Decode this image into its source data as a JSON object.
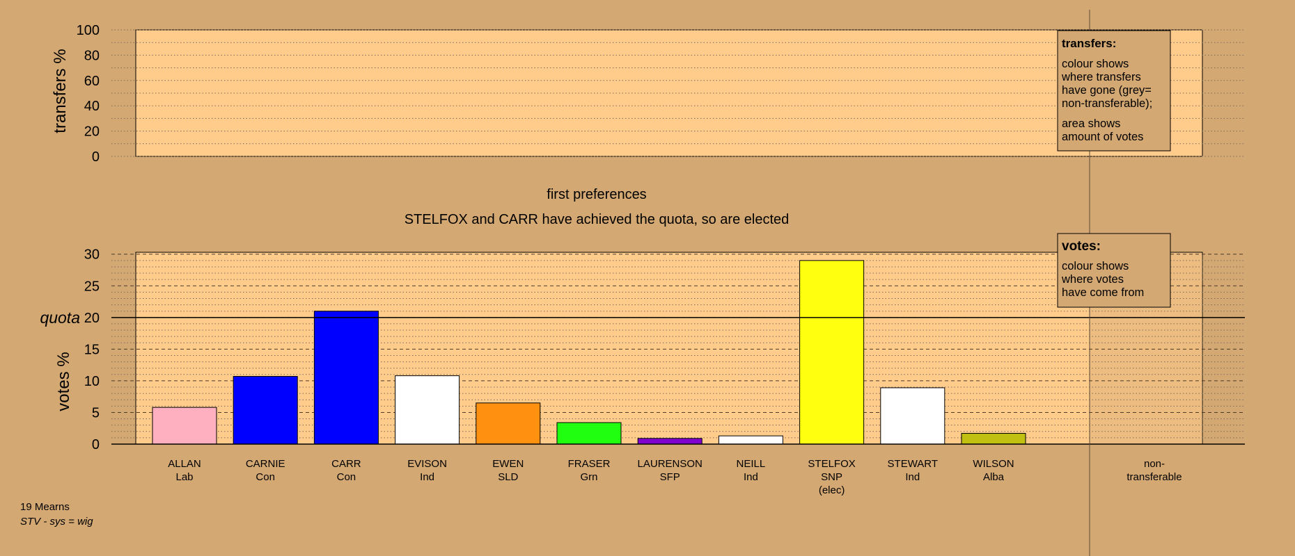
{
  "chart_data": {
    "type": "bar",
    "title": "first preferences",
    "subtitle": "STELFOX and CARR have achieved the quota, so are elected",
    "transfers_panel": {
      "ylabel": "transfers %",
      "ylim": [
        0,
        100
      ],
      "ticks": [
        "0",
        "20",
        "40",
        "60",
        "80",
        "100"
      ]
    },
    "votes_panel": {
      "ylabel": "votes %",
      "ylim": [
        0,
        30
      ],
      "ticks": [
        "0",
        "5",
        "10",
        "15",
        "20",
        "25",
        "30"
      ],
      "quota": 20,
      "quota_label": "quota"
    },
    "categories": [
      {
        "name": "ALLAN",
        "party": "Lab",
        "value": 5.8,
        "color": "#ffb0c0"
      },
      {
        "name": "CARNIE",
        "party": "Con",
        "value": 10.7,
        "color": "#0000ff"
      },
      {
        "name": "CARR",
        "party": "Con",
        "value": 21.0,
        "color": "#0000ff"
      },
      {
        "name": "EVISON",
        "party": "Ind",
        "value": 10.8,
        "color": "#ffffff"
      },
      {
        "name": "EWEN",
        "party": "SLD",
        "value": 6.5,
        "color": "#ff9010"
      },
      {
        "name": "FRASER",
        "party": "Grn",
        "value": 3.4,
        "color": "#20ff10"
      },
      {
        "name": "LAURENSON",
        "party": "SFP",
        "value": 0.9,
        "color": "#8000d0"
      },
      {
        "name": "NEILL",
        "party": "Ind",
        "value": 1.3,
        "color": "#ffffff"
      },
      {
        "name": "STELFOX",
        "party": "SNP",
        "status": "(elec)",
        "value": 29.0,
        "color": "#ffff10"
      },
      {
        "name": "STEWART",
        "party": "Ind",
        "value": 8.9,
        "color": "#ffffff"
      },
      {
        "name": "WILSON",
        "party": "Alba",
        "value": 1.7,
        "color": "#c0c010"
      }
    ],
    "nontransferable_label": [
      "non-",
      "transferable"
    ]
  },
  "legend_transfers": {
    "title": "transfers:",
    "lines1": [
      "colour shows",
      "where transfers",
      "have gone (grey=",
      "non-transferable);"
    ],
    "lines2": [
      "area shows",
      "amount of votes"
    ]
  },
  "legend_votes": {
    "title": "votes:",
    "lines": [
      "colour shows",
      "where votes",
      "have come from"
    ]
  },
  "footer": {
    "ward": "19 Mearns",
    "system": "STV - sys = wig"
  },
  "colors": {
    "background": "#d4a872",
    "plot_fill": "#ffcc8c",
    "legend_fill": "#d4a872"
  }
}
